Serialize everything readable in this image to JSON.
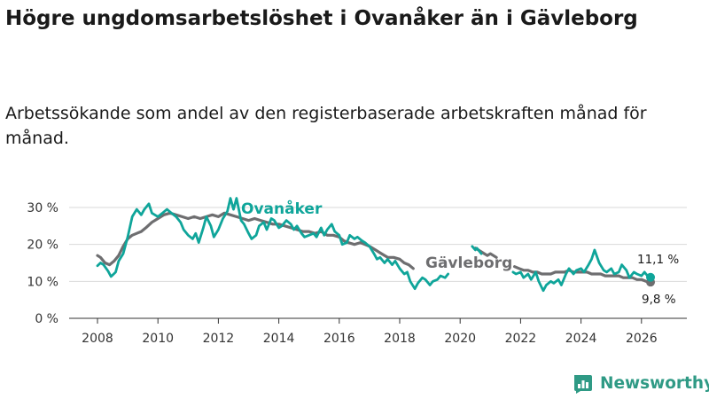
{
  "title": "Högre ungdomsarbetslöshet i Ovanåker än i Gävleborg",
  "subtitle": "Arbetssökande som andel av den registerbaserade arbetskraften månad för månad.",
  "brand": "Newsworthy",
  "colors": {
    "ovanaker": "#0fa59a",
    "gavleborg": "#6e6e70",
    "grid": "#d9d9d9",
    "axis": "#333333",
    "brand": "#2f9a85"
  },
  "chart_data": {
    "type": "line",
    "ylim": [
      0,
      30
    ],
    "xlim": [
      2007.5,
      2026.6
    ],
    "y_ticks": [
      0,
      10,
      20,
      30
    ],
    "y_tick_labels": [
      "0 %",
      "10 %",
      "20 %",
      "30 %"
    ],
    "x_ticks": [
      2008,
      2010,
      2012,
      2014,
      2016,
      2018,
      2020,
      2022,
      2024,
      2026
    ],
    "x_tick_labels": [
      "2008",
      "2010",
      "2012",
      "2014",
      "2016",
      "2018",
      "2020",
      "2022",
      "2024",
      "2026"
    ],
    "series": [
      {
        "name": "Ovanåker",
        "end_label": "11,1 %",
        "end_value": 11.1,
        "points": [
          [
            2008.0,
            14.2
          ],
          [
            2008.1,
            15.0
          ],
          [
            2008.2,
            14.5
          ],
          [
            2008.35,
            12.8
          ],
          [
            2008.45,
            11.3
          ],
          [
            2008.6,
            12.5
          ],
          [
            2008.7,
            15.5
          ],
          [
            2008.85,
            17.5
          ],
          [
            2009.0,
            22.0
          ],
          [
            2009.15,
            27.5
          ],
          [
            2009.3,
            29.5
          ],
          [
            2009.45,
            28.0
          ],
          [
            2009.55,
            29.5
          ],
          [
            2009.7,
            31.0
          ],
          [
            2009.8,
            28.5
          ],
          [
            2010.0,
            27.5
          ],
          [
            2010.15,
            28.5
          ],
          [
            2010.3,
            29.5
          ],
          [
            2010.45,
            28.5
          ],
          [
            2010.6,
            27.5
          ],
          [
            2010.75,
            26.0
          ],
          [
            2010.85,
            24.0
          ],
          [
            2011.0,
            22.5
          ],
          [
            2011.15,
            21.5
          ],
          [
            2011.25,
            23.0
          ],
          [
            2011.35,
            20.5
          ],
          [
            2011.5,
            24.5
          ],
          [
            2011.6,
            27.5
          ],
          [
            2011.75,
            25.0
          ],
          [
            2011.85,
            22.0
          ],
          [
            2012.0,
            24.0
          ],
          [
            2012.15,
            27.0
          ],
          [
            2012.3,
            29.0
          ],
          [
            2012.4,
            32.5
          ],
          [
            2012.5,
            29.5
          ],
          [
            2012.6,
            32.5
          ],
          [
            2012.75,
            26.5
          ],
          [
            2012.85,
            25.5
          ],
          [
            2013.0,
            23.0
          ],
          [
            2013.1,
            21.5
          ],
          [
            2013.25,
            22.5
          ],
          [
            2013.35,
            25.0
          ],
          [
            2013.5,
            26.0
          ],
          [
            2013.6,
            24.0
          ],
          [
            2013.75,
            27.0
          ],
          [
            2013.85,
            26.5
          ],
          [
            2014.0,
            24.5
          ],
          [
            2014.1,
            25.0
          ],
          [
            2014.25,
            26.5
          ],
          [
            2014.4,
            25.5
          ],
          [
            2014.5,
            24.0
          ],
          [
            2014.6,
            25.0
          ],
          [
            2014.75,
            23.0
          ],
          [
            2014.85,
            22.0
          ],
          [
            2015.0,
            22.5
          ],
          [
            2015.15,
            23.0
          ],
          [
            2015.25,
            22.0
          ],
          [
            2015.4,
            24.5
          ],
          [
            2015.5,
            22.5
          ],
          [
            2015.6,
            24.0
          ],
          [
            2015.75,
            25.5
          ],
          [
            2015.85,
            23.5
          ],
          [
            2016.0,
            22.5
          ],
          [
            2016.1,
            20.0
          ],
          [
            2016.25,
            20.5
          ],
          [
            2016.35,
            22.5
          ],
          [
            2016.5,
            21.5
          ],
          [
            2016.6,
            22.0
          ],
          [
            2016.75,
            21.0
          ],
          [
            2016.85,
            20.5
          ],
          [
            2017.0,
            19.5
          ],
          [
            2017.15,
            17.5
          ],
          [
            2017.25,
            16.0
          ],
          [
            2017.35,
            16.5
          ],
          [
            2017.5,
            15.0
          ],
          [
            2017.6,
            16.0
          ],
          [
            2017.75,
            14.5
          ],
          [
            2017.85,
            15.5
          ],
          [
            2018.0,
            13.5
          ],
          [
            2018.15,
            12.0
          ],
          [
            2018.25,
            12.5
          ],
          [
            2018.35,
            10.0
          ],
          [
            2018.5,
            8.0
          ],
          [
            2018.6,
            9.5
          ],
          [
            2018.75,
            11.0
          ],
          [
            2018.85,
            10.5
          ],
          [
            2019.0,
            9.0
          ],
          [
            2019.1,
            10.0
          ],
          [
            2019.25,
            10.5
          ],
          [
            2019.35,
            11.5
          ],
          [
            2019.5,
            11.0
          ],
          [
            2019.6,
            12.0
          ],
          null,
          [
            2020.4,
            19.5
          ],
          [
            2020.5,
            18.5
          ],
          [
            2020.55,
            19.0
          ],
          [
            2020.65,
            18.0
          ],
          [
            2020.7,
            17.5
          ],
          null,
          [
            2021.75,
            12.5
          ],
          [
            2021.85,
            12.0
          ],
          [
            2022.0,
            12.5
          ],
          [
            2022.1,
            11.0
          ],
          [
            2022.25,
            12.0
          ],
          [
            2022.35,
            10.5
          ],
          [
            2022.5,
            12.5
          ],
          [
            2022.6,
            10.0
          ],
          [
            2022.75,
            7.5
          ],
          [
            2022.85,
            9.0
          ],
          [
            2023.0,
            10.0
          ],
          [
            2023.1,
            9.5
          ],
          [
            2023.25,
            10.5
          ],
          [
            2023.35,
            9.0
          ],
          [
            2023.5,
            12.0
          ],
          [
            2023.6,
            13.5
          ],
          [
            2023.75,
            12.0
          ],
          [
            2023.85,
            13.0
          ],
          [
            2024.0,
            13.5
          ],
          [
            2024.1,
            12.5
          ],
          [
            2024.25,
            14.5
          ],
          [
            2024.35,
            16.0
          ],
          [
            2024.45,
            18.5
          ],
          [
            2024.6,
            15.0
          ],
          [
            2024.75,
            13.0
          ],
          [
            2024.85,
            12.5
          ],
          [
            2025.0,
            13.5
          ],
          [
            2025.1,
            12.0
          ],
          [
            2025.25,
            12.5
          ],
          [
            2025.35,
            14.5
          ],
          [
            2025.5,
            13.0
          ],
          [
            2025.6,
            11.0
          ],
          [
            2025.75,
            12.5
          ],
          [
            2025.85,
            12.0
          ],
          [
            2026.0,
            11.5
          ],
          [
            2026.1,
            12.5
          ],
          [
            2026.2,
            11.5
          ],
          [
            2026.3,
            11.1
          ]
        ]
      },
      {
        "name": "Gävleborg",
        "end_label": "9,8 %",
        "end_value": 9.8,
        "points": [
          [
            2008.0,
            17.0
          ],
          [
            2008.1,
            16.5
          ],
          [
            2008.25,
            15.0
          ],
          [
            2008.4,
            14.5
          ],
          [
            2008.55,
            15.5
          ],
          [
            2008.7,
            17.0
          ],
          [
            2008.85,
            19.5
          ],
          [
            2009.0,
            21.5
          ],
          [
            2009.15,
            22.5
          ],
          [
            2009.3,
            23.0
          ],
          [
            2009.45,
            23.5
          ],
          [
            2009.6,
            24.5
          ],
          [
            2009.8,
            26.0
          ],
          [
            2010.0,
            27.0
          ],
          [
            2010.2,
            28.0
          ],
          [
            2010.4,
            28.5
          ],
          [
            2010.6,
            28.0
          ],
          [
            2010.8,
            27.5
          ],
          [
            2011.0,
            27.0
          ],
          [
            2011.2,
            27.5
          ],
          [
            2011.4,
            27.0
          ],
          [
            2011.6,
            27.5
          ],
          [
            2011.8,
            28.0
          ],
          [
            2012.0,
            27.5
          ],
          [
            2012.2,
            28.5
          ],
          [
            2012.4,
            28.0
          ],
          [
            2012.6,
            27.5
          ],
          [
            2012.8,
            27.0
          ],
          [
            2013.0,
            26.5
          ],
          [
            2013.2,
            27.0
          ],
          [
            2013.4,
            26.5
          ],
          [
            2013.6,
            26.0
          ],
          [
            2013.8,
            25.5
          ],
          [
            2014.0,
            25.5
          ],
          [
            2014.2,
            25.0
          ],
          [
            2014.4,
            24.5
          ],
          [
            2014.6,
            24.0
          ],
          [
            2014.8,
            23.5
          ],
          [
            2015.0,
            23.5
          ],
          [
            2015.2,
            23.0
          ],
          [
            2015.4,
            23.5
          ],
          [
            2015.6,
            22.5
          ],
          [
            2015.8,
            22.5
          ],
          [
            2016.0,
            22.0
          ],
          [
            2016.15,
            21.0
          ],
          [
            2016.3,
            20.5
          ],
          [
            2016.5,
            20.0
          ],
          [
            2016.7,
            20.5
          ],
          [
            2016.85,
            20.0
          ],
          [
            2017.0,
            19.5
          ],
          [
            2017.2,
            18.5
          ],
          [
            2017.4,
            17.5
          ],
          [
            2017.6,
            16.5
          ],
          [
            2017.8,
            16.5
          ],
          [
            2018.0,
            16.0
          ],
          [
            2018.15,
            15.0
          ],
          [
            2018.3,
            14.5
          ],
          [
            2018.45,
            13.5
          ],
          null,
          [
            2020.5,
            19.0
          ],
          [
            2020.6,
            18.5
          ],
          [
            2020.7,
            18.0
          ],
          [
            2020.8,
            17.5
          ],
          [
            2020.9,
            17.0
          ],
          [
            2021.0,
            17.5
          ],
          [
            2021.1,
            17.0
          ],
          [
            2021.2,
            16.5
          ],
          null,
          [
            2021.8,
            14.0
          ],
          [
            2021.95,
            13.5
          ],
          [
            2022.1,
            13.0
          ],
          [
            2022.25,
            13.0
          ],
          [
            2022.4,
            12.5
          ],
          [
            2022.55,
            12.5
          ],
          [
            2022.7,
            12.0
          ],
          [
            2022.85,
            12.0
          ],
          [
            2023.0,
            12.0
          ],
          [
            2023.15,
            12.5
          ],
          [
            2023.3,
            12.5
          ],
          [
            2023.45,
            12.5
          ],
          [
            2023.6,
            13.0
          ],
          [
            2023.75,
            12.5
          ],
          [
            2023.9,
            12.5
          ],
          [
            2024.05,
            12.5
          ],
          [
            2024.2,
            12.5
          ],
          [
            2024.35,
            12.0
          ],
          [
            2024.5,
            12.0
          ],
          [
            2024.65,
            12.0
          ],
          [
            2024.8,
            11.5
          ],
          [
            2024.95,
            11.5
          ],
          [
            2025.1,
            11.5
          ],
          [
            2025.25,
            11.5
          ],
          [
            2025.4,
            11.0
          ],
          [
            2025.55,
            11.0
          ],
          [
            2025.7,
            11.0
          ],
          [
            2025.85,
            10.5
          ],
          [
            2026.0,
            10.5
          ],
          [
            2026.15,
            10.0
          ],
          [
            2026.3,
            9.8
          ]
        ]
      }
    ]
  }
}
